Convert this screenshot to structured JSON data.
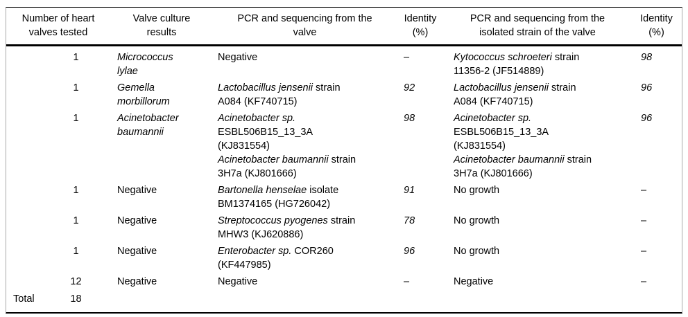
{
  "page": {
    "background": "#ffffff",
    "text_color": "#000000",
    "rule_color": "#000000",
    "side_rule_color": "#a6a6a6"
  },
  "table": {
    "headers": [
      {
        "id": "valves",
        "lines": [
          "Number of heart",
          "valves tested"
        ]
      },
      {
        "id": "culture",
        "lines": [
          "Valve culture",
          "results"
        ]
      },
      {
        "id": "pcr_valve",
        "lines": [
          "PCR and sequencing from the",
          "valve"
        ]
      },
      {
        "id": "identity_valve",
        "lines": [
          "Identity",
          "(%)"
        ]
      },
      {
        "id": "pcr_strain",
        "lines": [
          "PCR and sequencing from the",
          "isolated strain of the valve"
        ]
      },
      {
        "id": "identity_strain",
        "lines": [
          "Identity",
          "(%)"
        ]
      }
    ],
    "rows": [
      {
        "valves": "1",
        "culture": [
          {
            "text": "Micrococcus",
            "italic": true
          },
          {
            "break": true
          },
          {
            "text": "lylae",
            "italic": true
          }
        ],
        "pcr_valve": [
          {
            "text": "Negative"
          }
        ],
        "identity_valve": [
          {
            "text": "–"
          }
        ],
        "pcr_strain": [
          {
            "text": "Kytococcus schroeteri",
            "italic": true
          },
          {
            "text": " strain"
          },
          {
            "break": true
          },
          {
            "text": "11356-2 (JF514889)"
          }
        ],
        "identity_strain": [
          {
            "text": "98",
            "italic": true
          }
        ]
      },
      {
        "valves": "1",
        "culture": [
          {
            "text": "Gemella",
            "italic": true
          },
          {
            "break": true
          },
          {
            "text": "morbillorum",
            "italic": true
          }
        ],
        "pcr_valve": [
          {
            "text": "Lactobacillus jensenii",
            "italic": true
          },
          {
            "text": " strain"
          },
          {
            "break": true
          },
          {
            "text": "A084 (KF740715)"
          }
        ],
        "identity_valve": [
          {
            "text": "92",
            "italic": true
          }
        ],
        "pcr_strain": [
          {
            "text": "Lactobacillus jensenii",
            "italic": true
          },
          {
            "text": " strain"
          },
          {
            "break": true
          },
          {
            "text": "A084 (KF740715)"
          }
        ],
        "identity_strain": [
          {
            "text": "96",
            "italic": true
          }
        ]
      },
      {
        "valves": "1",
        "culture": [
          {
            "text": "Acinetobacter",
            "italic": true
          },
          {
            "break": true
          },
          {
            "text": "baumannii",
            "italic": true
          }
        ],
        "pcr_valve": [
          {
            "text": "Acinetobacter sp.",
            "italic": true
          },
          {
            "break": true
          },
          {
            "text": "ESBL506B15_13_3A"
          },
          {
            "break": true
          },
          {
            "text": "(KJ831554)"
          },
          {
            "break": true
          },
          {
            "text": "Acinetobacter baumannii",
            "italic": true
          },
          {
            "text": " strain"
          },
          {
            "break": true
          },
          {
            "text": "3H7a (KJ801666)"
          }
        ],
        "identity_valve": [
          {
            "text": "98",
            "italic": true
          }
        ],
        "pcr_strain": [
          {
            "text": "Acinetobacter sp.",
            "italic": true
          },
          {
            "break": true
          },
          {
            "text": "ESBL506B15_13_3A"
          },
          {
            "break": true
          },
          {
            "text": "(KJ831554)"
          },
          {
            "break": true
          },
          {
            "text": "Acinetobacter baumannii",
            "italic": true
          },
          {
            "text": " strain"
          },
          {
            "break": true
          },
          {
            "text": "3H7a (KJ801666)"
          }
        ],
        "identity_strain": [
          {
            "text": "96",
            "italic": true
          }
        ]
      },
      {
        "valves": "1",
        "culture": [
          {
            "text": "Negative"
          }
        ],
        "pcr_valve": [
          {
            "text": "Bartonella henselae",
            "italic": true
          },
          {
            "text": " isolate"
          },
          {
            "break": true
          },
          {
            "text": "BM1374165 (HG726042)"
          }
        ],
        "identity_valve": [
          {
            "text": "91",
            "italic": true
          }
        ],
        "pcr_strain": [
          {
            "text": "No growth"
          }
        ],
        "identity_strain": [
          {
            "text": "–"
          }
        ]
      },
      {
        "valves": "1",
        "culture": [
          {
            "text": "Negative"
          }
        ],
        "pcr_valve": [
          {
            "text": "Streptococcus pyogenes",
            "italic": true
          },
          {
            "text": " strain"
          },
          {
            "break": true
          },
          {
            "text": "MHW3 (KJ620886)"
          }
        ],
        "identity_valve": [
          {
            "text": "78",
            "italic": true
          }
        ],
        "pcr_strain": [
          {
            "text": "No growth"
          }
        ],
        "identity_strain": [
          {
            "text": "–"
          }
        ]
      },
      {
        "valves": "1",
        "culture": [
          {
            "text": "Negative"
          }
        ],
        "pcr_valve": [
          {
            "text": "Enterobacter sp.",
            "italic": true
          },
          {
            "text": " COR260"
          },
          {
            "break": true
          },
          {
            "text": "(KF447985)"
          }
        ],
        "identity_valve": [
          {
            "text": "96",
            "italic": true
          }
        ],
        "pcr_strain": [
          {
            "text": "No growth"
          }
        ],
        "identity_strain": [
          {
            "text": "–"
          }
        ]
      },
      {
        "valves": "12",
        "culture": [
          {
            "text": "Negative"
          }
        ],
        "pcr_valve": [
          {
            "text": "Negative"
          }
        ],
        "identity_valve": [
          {
            "text": "–"
          }
        ],
        "pcr_strain": [
          {
            "text": "Negative"
          }
        ],
        "identity_strain": [
          {
            "text": "–"
          }
        ]
      }
    ],
    "total": {
      "label": "Total",
      "valves": "18"
    }
  }
}
